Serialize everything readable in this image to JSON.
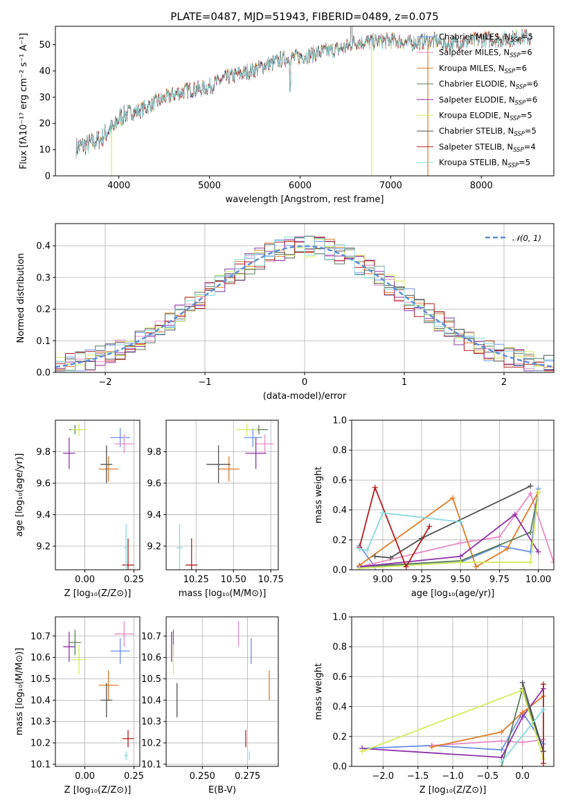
{
  "title": "PLATE=0487, MJD=51943, FIBERID=0489, z=0.075",
  "colors": {
    "Chabrier MILES": "#6a8fe8",
    "Salpeter MILES": "#e88ac4",
    "Kroupa MILES": "#e07a25",
    "Chabrier ELODIE": "#5a7e5a",
    "Salpeter ELODIE": "#8c2fa8",
    "Kroupa ELODIE": "#d4ea5a",
    "Chabrier STELIB": "#505050",
    "Salpeter STELIB": "#b01c1c",
    "Kroupa STELIB": "#86d9dc"
  },
  "chart_data": [
    {
      "id": "spectrum",
      "type": "line",
      "xlabel": "wavelength [Angstrom, rest frame]",
      "ylabel": "Flux [fλ10⁻¹⁷ erg cm⁻² s⁻¹ A⁻¹]",
      "xlim": [
        3300,
        8800
      ],
      "ylim": [
        0,
        57
      ],
      "xticks": [
        4000,
        5000,
        6000,
        7000,
        8000
      ],
      "yticks": [
        0,
        10,
        20,
        30,
        40,
        50
      ],
      "legend_position": "top-right",
      "continuum": {
        "x": [
          3550,
          3650,
          3700,
          3800,
          3850,
          3900,
          3950,
          4000,
          4100,
          4200,
          4300,
          4400,
          4500,
          4600,
          4700,
          4800,
          4900,
          5000,
          5100,
          5200,
          5300,
          5400,
          5500,
          5600,
          5700,
          5800,
          5900,
          6000,
          6100,
          6200,
          6300,
          6400,
          6500,
          6600,
          6700,
          6800,
          6900,
          7000,
          7100,
          7200,
          7300,
          7400,
          7500,
          7600,
          7700,
          7800,
          7900,
          8000,
          8100,
          8200,
          8300,
          8400,
          8500,
          8550
        ],
        "y": [
          11,
          12,
          12.5,
          14,
          16,
          18,
          18,
          22,
          24,
          24.5,
          26,
          28,
          29.5,
          31,
          32,
          33,
          33,
          34,
          36,
          37.5,
          38.5,
          39.5,
          40.5,
          42,
          43,
          44.5,
          45,
          45.5,
          46,
          47,
          47.5,
          48,
          49,
          51,
          51,
          51,
          51.5,
          51.5,
          51.5,
          50.5,
          51,
          51.5,
          51.5,
          50,
          50.5,
          51,
          51.5,
          52,
          52,
          52,
          52,
          53,
          53,
          52
        ]
      },
      "series": [
        {
          "name": "Chabrier MILES",
          "n_ssp": 5
        },
        {
          "name": "Salpeter MILES",
          "n_ssp": 6
        },
        {
          "name": "Kroupa MILES",
          "n_ssp": 6
        },
        {
          "name": "Chabrier ELODIE",
          "n_ssp": 6
        },
        {
          "name": "Salpeter ELODIE",
          "n_ssp": 6
        },
        {
          "name": "Kroupa ELODIE",
          "n_ssp": 5
        },
        {
          "name": "Chabrier STELIB",
          "n_ssp": 5
        },
        {
          "name": "Salpeter STELIB",
          "n_ssp": 4
        },
        {
          "name": "Kroupa STELIB",
          "n_ssp": 5
        }
      ],
      "legend_prefixes": [
        "Chabrier MILES, N",
        "Salpeter MILES, N",
        "Kroupa MILES, N",
        "Chabrier ELODIE, N",
        "Salpeter ELODIE, N",
        "Kroupa ELODIE, N",
        "Chabrier STELIB, N",
        "Salpeter STELIB, N",
        "Kroupa STELIB, N"
      ],
      "legend_subscript": "SSP",
      "legend_suffixes": [
        "=5",
        "=6",
        "=6",
        "=6",
        "=6",
        "=5",
        "=5",
        "=4",
        "=5"
      ]
    },
    {
      "id": "residuals",
      "type": "histogram",
      "xlabel": "(data-model)/error",
      "ylabel": "Normed distribution",
      "xlim": [
        -2.5,
        2.5
      ],
      "ylim": [
        0,
        0.47
      ],
      "xticks": [
        -2,
        -1,
        0,
        1,
        2
      ],
      "yticks": [
        0.0,
        0.1,
        0.2,
        0.3,
        0.4
      ],
      "grid": true,
      "legend_label": "𝒩(0, 1)",
      "legend_position": "top-right"
    },
    {
      "id": "age_vs_Z",
      "type": "errorbar",
      "xlabel": "Z [log₁₀(Z/Z⊙)]",
      "ylabel": "age  [log₁₀(age/yr)]",
      "xlim": [
        -0.15,
        0.28
      ],
      "ylim": [
        9.05,
        10.0
      ],
      "xticks": [
        0.0,
        0.25
      ],
      "yticks": [
        9.2,
        9.4,
        9.6,
        9.8
      ],
      "grid": true
    },
    {
      "id": "age_vs_mass",
      "type": "errorbar",
      "xlabel": "mass [log₁₀(M/M⊙)]",
      "ylabel": "",
      "xlim": [
        10.05,
        10.8
      ],
      "ylim": [
        9.05,
        10.0
      ],
      "xticks": [
        10.25,
        10.5,
        10.75
      ],
      "yticks": [
        9.2,
        9.4,
        9.6,
        9.8
      ],
      "grid": true
    },
    {
      "id": "massweight_vs_age",
      "type": "line",
      "xlabel": "age  [log₁₀(age/yr)]",
      "ylabel": "mass weight",
      "xlim": [
        8.8,
        10.1
      ],
      "ylim": [
        0,
        1.0
      ],
      "xticks": [
        9.0,
        9.25,
        9.5,
        9.75,
        10.0
      ],
      "yticks": [
        0.0,
        0.2,
        0.4,
        0.6,
        0.8,
        1.0
      ],
      "grid": true
    },
    {
      "id": "mass_vs_Z",
      "type": "errorbar",
      "xlabel": "Z [log₁₀(Z/Z⊙)]",
      "ylabel": "mass [log₁₀(M/M⊙)]",
      "xlim": [
        -0.15,
        0.28
      ],
      "ylim": [
        10.09,
        10.79
      ],
      "xticks": [
        0.0,
        0.25
      ],
      "yticks": [
        10.1,
        10.2,
        10.3,
        10.4,
        10.5,
        10.6,
        10.7
      ],
      "grid": true
    },
    {
      "id": "mass_vs_ebv",
      "type": "errorbar",
      "xlabel": "E(B-V)",
      "ylabel": "",
      "xlim": [
        0.23,
        0.292
      ],
      "ylim": [
        10.09,
        10.79
      ],
      "xticks": [
        0.25,
        0.275
      ],
      "yticks": [
        10.1,
        10.2,
        10.3,
        10.4,
        10.5,
        10.6,
        10.7
      ],
      "grid": true
    },
    {
      "id": "massweight_vs_Z",
      "type": "line",
      "xlabel": "Z [log₁₀(Z/Z⊙)]",
      "ylabel": "mass weight",
      "xlim": [
        -2.45,
        0.45
      ],
      "ylim": [
        0,
        1.0
      ],
      "xticks": [
        -2.0,
        -1.5,
        -1.0,
        -0.5,
        0.0
      ],
      "yticks": [
        0.0,
        0.2,
        0.4,
        0.6,
        0.8,
        1.0
      ],
      "grid": true
    }
  ],
  "points": {
    "Chabrier MILES": {
      "Z": 0.18,
      "Zerr": 0.05,
      "age": 9.89,
      "ageerr": 0.06,
      "mass": 10.63,
      "masserr": 0.06,
      "ebv": 0.277,
      "ebverr": 0.0,
      "age_curve": [
        [
          8.85,
          0.16
        ],
        [
          8.95,
          0.02
        ],
        [
          9.5,
          0.05
        ],
        [
          9.75,
          0.16
        ],
        [
          9.95,
          0.12
        ],
        [
          10.0,
          0.54
        ]
      ],
      "Z_curve": [
        [
          -2.3,
          0.12
        ],
        [
          -1.3,
          0.14
        ],
        [
          -0.3,
          0.11
        ],
        [
          0.0,
          0.36
        ],
        [
          0.3,
          0.15
        ]
      ]
    },
    "Salpeter MILES": {
      "Z": 0.2,
      "Zerr": 0.05,
      "age": 9.85,
      "ageerr": 0.06,
      "mass": 10.71,
      "masserr": 0.06,
      "ebv": 0.27,
      "ebverr": 0.0,
      "age_curve": [
        [
          8.85,
          0.02
        ],
        [
          9.5,
          0.18
        ],
        [
          9.75,
          0.22
        ],
        [
          9.95,
          0.51
        ],
        [
          10.1,
          0.05
        ]
      ],
      "Z_curve": [
        [
          -1.3,
          0.14
        ],
        [
          -0.3,
          0.17
        ],
        [
          0.0,
          0.16
        ],
        [
          0.3,
          0.18
        ]
      ]
    },
    "Kroupa MILES": {
      "Z": 0.12,
      "Zerr": 0.05,
      "age": 9.69,
      "ageerr": 0.08,
      "mass": 10.47,
      "masserr": 0.07,
      "ebv": 0.287,
      "ebverr": 0.0,
      "age_curve": [
        [
          8.85,
          0.03
        ],
        [
          9.45,
          0.48
        ],
        [
          9.6,
          0.02
        ],
        [
          9.8,
          0.14
        ],
        [
          10.0,
          0.52
        ]
      ],
      "Z_curve": [
        [
          -1.3,
          0.13
        ],
        [
          -0.3,
          0.23
        ],
        [
          0.0,
          0.36
        ],
        [
          0.3,
          0.47
        ]
      ]
    },
    "Chabrier ELODIE": {
      "Z": -0.05,
      "Zerr": 0.03,
      "age": 9.94,
      "ageerr": 0.03,
      "mass": 10.67,
      "masserr": 0.06,
      "ebv": 0.234,
      "ebverr": 0.0,
      "age_curve": [
        [
          8.85,
          0.02
        ],
        [
          9.5,
          0.06
        ],
        [
          9.95,
          0.25
        ],
        [
          10.0,
          0.52
        ]
      ],
      "Z_curve": [
        [
          -0.3,
          0.0
        ],
        [
          0.0,
          0.52
        ],
        [
          0.3,
          0.1
        ]
      ]
    },
    "Salpeter ELODIE": {
      "Z": -0.08,
      "Zerr": 0.03,
      "age": 9.79,
      "ageerr": 0.1,
      "mass": 10.65,
      "masserr": 0.07,
      "ebv": 0.233,
      "ebverr": 0.0,
      "age_curve": [
        [
          8.85,
          0.02
        ],
        [
          9.5,
          0.09
        ],
        [
          9.85,
          0.37
        ],
        [
          10.0,
          0.12
        ]
      ],
      "Z_curve": [
        [
          -2.3,
          0.12
        ],
        [
          -0.3,
          0.06
        ],
        [
          0.0,
          0.33
        ],
        [
          0.3,
          0.52
        ]
      ]
    },
    "Kroupa ELODIE": {
      "Z": -0.03,
      "Zerr": 0.04,
      "age": 9.94,
      "ageerr": 0.04,
      "mass": 10.59,
      "masserr": 0.07,
      "ebv": 0.234,
      "ebverr": 0.0,
      "age_curve": [
        [
          8.85,
          0.01
        ],
        [
          9.5,
          0.05
        ],
        [
          9.95,
          0.05
        ],
        [
          10.0,
          0.52
        ]
      ],
      "Z_curve": [
        [
          -2.3,
          0.1
        ],
        [
          0.0,
          0.51
        ],
        [
          0.3,
          0.05
        ]
      ]
    },
    "Chabrier STELIB": {
      "Z": 0.11,
      "Zerr": 0.03,
      "age": 9.72,
      "ageerr": 0.12,
      "mass": 10.4,
      "masserr": 0.08,
      "ebv": 0.236,
      "ebverr": 0.0,
      "age_curve": [
        [
          8.95,
          0.09
        ],
        [
          9.05,
          0.08
        ],
        [
          9.25,
          0.21
        ],
        [
          9.95,
          0.56
        ]
      ],
      "Z_curve": [
        [
          0.0,
          0.56
        ],
        [
          0.3,
          0.1
        ]
      ]
    },
    "Salpeter STELIB": {
      "Z": 0.22,
      "Zerr": 0.03,
      "age": 9.08,
      "ageerr": 0.17,
      "mass": 10.22,
      "masserr": 0.04,
      "ebv": 0.274,
      "ebverr": 0.0,
      "age_curve": [
        [
          8.85,
          0.15
        ],
        [
          8.95,
          0.55
        ],
        [
          9.15,
          0.02
        ],
        [
          9.3,
          0.29
        ]
      ],
      "Z_curve": [
        [
          0.3,
          0.55
        ],
        [
          0.3,
          0.02
        ]
      ]
    },
    "Kroupa STELIB": {
      "Z": 0.21,
      "Zerr": 0.01,
      "age": 9.19,
      "ageerr": 0.15,
      "mass": 10.14,
      "masserr": 0.02,
      "ebv": 0.276,
      "ebverr": 0.0,
      "age_curve": [
        [
          8.85,
          0.14
        ],
        [
          8.9,
          0.13
        ],
        [
          9.0,
          0.38
        ],
        [
          9.5,
          0.32
        ]
      ],
      "Z_curve": [
        [
          -0.3,
          0.03
        ],
        [
          0.3,
          0.38
        ]
      ]
    }
  }
}
